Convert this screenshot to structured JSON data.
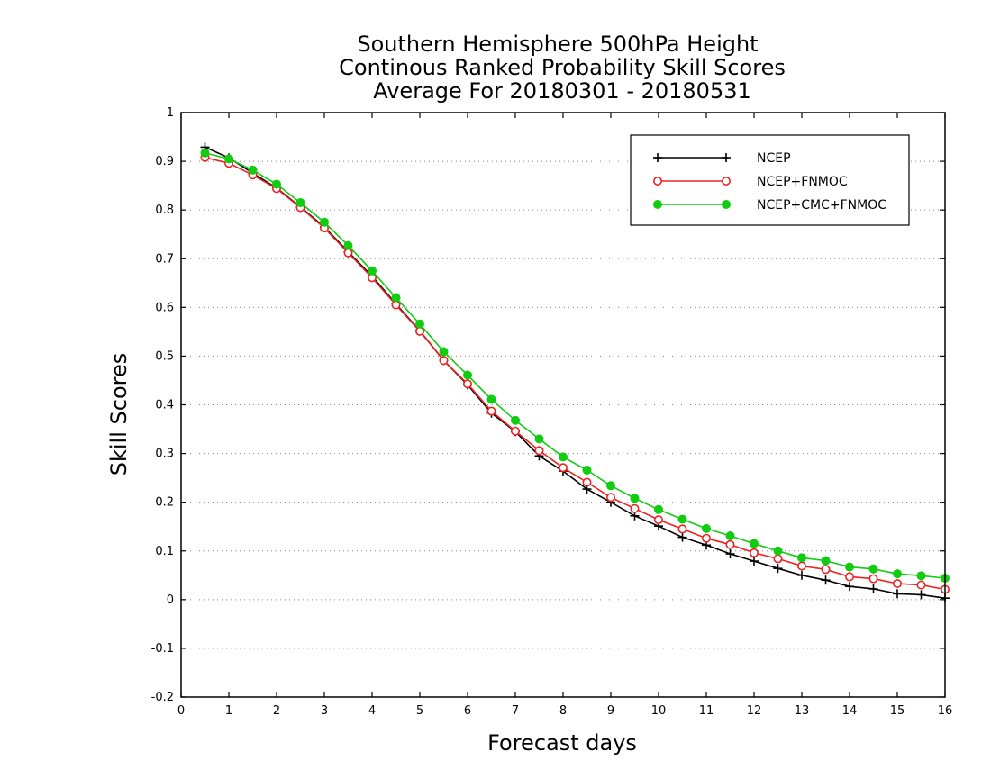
{
  "chart_data": {
    "type": "line",
    "title": [
      "Southern Hemisphere 500hPa Height",
      "Continous Ranked Probability Skill Scores",
      "Average For 20180301 - 20180531"
    ],
    "xlabel": "Forecast days",
    "ylabel": "Skill Scores",
    "xlim": [
      0,
      16
    ],
    "ylim": [
      -0.2,
      1
    ],
    "x_ticks": [
      0,
      1,
      2,
      3,
      4,
      5,
      6,
      7,
      8,
      9,
      10,
      11,
      12,
      13,
      14,
      15,
      16
    ],
    "x_tick_labels": [
      "0",
      "1",
      "2",
      "3",
      "4",
      "5",
      "6",
      "7",
      "8",
      "9",
      "10",
      "11",
      "12",
      "13",
      "14",
      "15",
      "16"
    ],
    "y_ticks": [
      -0.2,
      -0.1,
      0,
      0.1,
      0.2,
      0.3,
      0.4,
      0.5,
      0.6,
      0.7,
      0.8,
      0.9,
      1
    ],
    "y_tick_labels": [
      "-0.2",
      "-0.1",
      "0",
      "0.1",
      "0.2",
      "0.3",
      "0.4",
      "0.5",
      "0.6",
      "0.7",
      "0.8",
      "0.9",
      "1"
    ],
    "grid": "horizontal dotted",
    "legend_position": "top-right",
    "x": [
      0.5,
      1,
      1.5,
      2,
      2.5,
      3,
      3.5,
      4,
      4.5,
      5,
      5.5,
      6,
      6.5,
      7,
      7.5,
      8,
      8.5,
      9,
      9.5,
      10,
      10.5,
      11,
      11.5,
      12,
      12.5,
      13,
      13.5,
      14,
      14.5,
      15,
      15.5,
      16
    ],
    "series": [
      {
        "name": "NCEP",
        "color": "#000000",
        "marker": "plus",
        "values": [
          0.929,
          0.907,
          0.876,
          0.845,
          0.806,
          0.765,
          0.714,
          0.664,
          0.607,
          0.552,
          0.491,
          0.441,
          0.383,
          0.345,
          0.295,
          0.264,
          0.227,
          0.2,
          0.172,
          0.151,
          0.128,
          0.112,
          0.094,
          0.079,
          0.064,
          0.05,
          0.04,
          0.027,
          0.022,
          0.012,
          0.01,
          0.003
        ]
      },
      {
        "name": "NCEP+FNMOC",
        "color": "#ee2222",
        "marker": "open-circle",
        "values": [
          0.908,
          0.896,
          0.872,
          0.844,
          0.805,
          0.763,
          0.712,
          0.661,
          0.605,
          0.551,
          0.491,
          0.443,
          0.387,
          0.346,
          0.306,
          0.271,
          0.241,
          0.21,
          0.187,
          0.164,
          0.145,
          0.126,
          0.113,
          0.096,
          0.084,
          0.069,
          0.062,
          0.047,
          0.043,
          0.033,
          0.03,
          0.021
        ]
      },
      {
        "name": "NCEP+CMC+FNMOC",
        "color": "#11cc11",
        "marker": "filled-circle",
        "values": [
          0.917,
          0.905,
          0.882,
          0.853,
          0.815,
          0.775,
          0.727,
          0.675,
          0.62,
          0.566,
          0.509,
          0.461,
          0.411,
          0.368,
          0.33,
          0.293,
          0.266,
          0.234,
          0.208,
          0.185,
          0.165,
          0.146,
          0.131,
          0.115,
          0.1,
          0.086,
          0.08,
          0.067,
          0.063,
          0.053,
          0.049,
          0.044
        ]
      }
    ]
  }
}
